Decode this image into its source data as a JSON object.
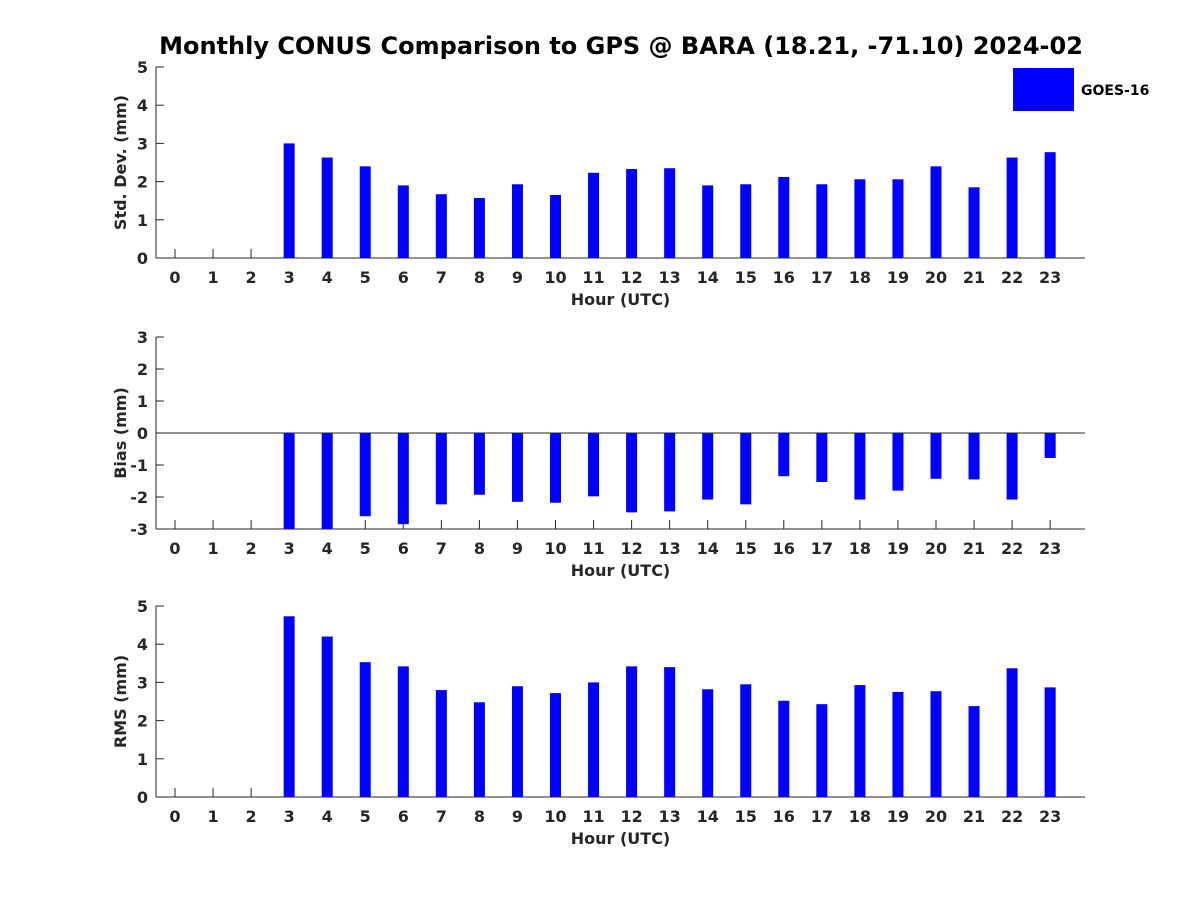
{
  "title": "Monthly CONUS Comparison to GPS @ BARA (18.21, -71.10) 2024-02",
  "legend": {
    "label": "GOES-16",
    "color": "#0000ff",
    "placement": "top-right"
  },
  "chart_data": [
    {
      "type": "bar",
      "xlabel": "Hour (UTC)",
      "ylabel": "Std. Dev. (mm)",
      "ylim": [
        0,
        5
      ],
      "yticks": [
        "0",
        "1",
        "2",
        "3",
        "4",
        "5"
      ],
      "categories": [
        "0",
        "1",
        "2",
        "3",
        "4",
        "5",
        "6",
        "7",
        "8",
        "9",
        "10",
        "11",
        "12",
        "13",
        "14",
        "15",
        "16",
        "17",
        "18",
        "19",
        "20",
        "21",
        "22",
        "23"
      ],
      "series": [
        {
          "name": "GOES-16",
          "color": "#0000ff",
          "values": [
            null,
            null,
            null,
            3.0,
            2.63,
            2.4,
            1.9,
            1.67,
            1.57,
            1.93,
            1.65,
            2.23,
            2.33,
            2.35,
            1.9,
            1.93,
            2.12,
            1.93,
            2.06,
            2.06,
            2.4,
            1.85,
            2.63,
            2.77
          ]
        }
      ]
    },
    {
      "type": "bar",
      "xlabel": "Hour (UTC)",
      "ylabel": "Bias (mm)",
      "ylim": [
        -3,
        3
      ],
      "yticks": [
        "-3",
        "-2",
        "-1",
        "0",
        "1",
        "2",
        "3"
      ],
      "categories": [
        "0",
        "1",
        "2",
        "3",
        "4",
        "5",
        "6",
        "7",
        "8",
        "9",
        "10",
        "11",
        "12",
        "13",
        "14",
        "15",
        "16",
        "17",
        "18",
        "19",
        "20",
        "21",
        "22",
        "23"
      ],
      "series": [
        {
          "name": "GOES-16",
          "color": "#0000ff",
          "values": [
            null,
            null,
            null,
            -3.0,
            -3.0,
            -2.6,
            -2.85,
            -2.23,
            -1.93,
            -2.15,
            -2.18,
            -1.98,
            -2.48,
            -2.45,
            -2.08,
            -2.23,
            -1.35,
            -1.53,
            -2.08,
            -1.8,
            -1.43,
            -1.45,
            -2.08,
            -0.78
          ]
        }
      ]
    },
    {
      "type": "bar",
      "xlabel": "Hour (UTC)",
      "ylabel": "RMS (mm)",
      "ylim": [
        0,
        5
      ],
      "yticks": [
        "0",
        "1",
        "2",
        "3",
        "4",
        "5"
      ],
      "categories": [
        "0",
        "1",
        "2",
        "3",
        "4",
        "5",
        "6",
        "7",
        "8",
        "9",
        "10",
        "11",
        "12",
        "13",
        "14",
        "15",
        "16",
        "17",
        "18",
        "19",
        "20",
        "21",
        "22",
        "23"
      ],
      "series": [
        {
          "name": "GOES-16",
          "color": "#0000ff",
          "values": [
            null,
            null,
            null,
            4.73,
            4.2,
            3.53,
            3.42,
            2.8,
            2.48,
            2.9,
            2.72,
            3.0,
            3.42,
            3.4,
            2.82,
            2.95,
            2.52,
            2.43,
            2.93,
            2.75,
            2.77,
            2.38,
            3.37,
            2.87
          ]
        }
      ]
    }
  ]
}
